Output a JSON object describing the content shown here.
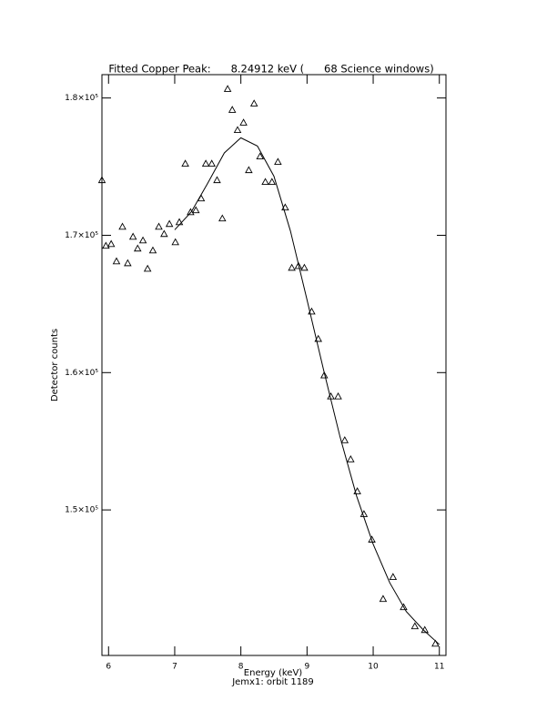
{
  "chart_data": {
    "type": "scatter",
    "title": "Fitted Copper Peak:      8.24912 keV (      68 Science windows)",
    "x_label": "Energy (keV)",
    "y_label": "Detector counts",
    "footer": "Jemx1: orbit 1189",
    "xlim": [
      5.9,
      11.1
    ],
    "ylim": [
      139400,
      181700
    ],
    "xticks": [
      6,
      7,
      8,
      9,
      10,
      11
    ],
    "yticks": [
      {
        "value": 150000,
        "label": "1.5×10⁵"
      },
      {
        "value": 160000,
        "label": "1.6×10⁵"
      },
      {
        "value": 170000,
        "label": "1.7×10⁵"
      },
      {
        "value": 180000,
        "label": "1.8×10⁵"
      }
    ],
    "color": "#000000",
    "points": {
      "x": [
        5.9,
        5.96,
        6.04,
        6.12,
        6.21,
        6.29,
        6.37,
        6.44,
        6.52,
        6.59,
        6.67,
        6.76,
        6.84,
        6.92,
        7.01,
        7.07,
        7.16,
        7.24,
        7.32,
        7.4,
        7.47,
        7.56,
        7.64,
        7.72,
        7.8,
        7.87,
        7.95,
        8.04,
        8.12,
        8.2,
        8.29,
        8.37,
        8.47,
        8.56,
        8.67,
        8.77,
        8.87,
        8.96,
        9.07,
        9.17,
        9.26,
        9.36,
        9.47,
        9.57,
        9.66,
        9.76,
        9.86,
        9.98,
        10.15,
        10.3,
        10.46,
        10.63,
        10.78,
        10.94
      ],
      "values": [
        174020,
        169240,
        169370,
        168110,
        170630,
        167970,
        169900,
        169040,
        169630,
        167570,
        168900,
        170630,
        170100,
        170830,
        169500,
        170960,
        175220,
        171690,
        171830,
        172690,
        175220,
        175220,
        174020,
        171230,
        180660,
        179140,
        177670,
        178210,
        174750,
        179600,
        175750,
        173890,
        173890,
        175350,
        172030,
        167640,
        167770,
        167640,
        164450,
        162460,
        159800,
        158270,
        158270,
        155080,
        153690,
        151360,
        149700,
        147840,
        143520,
        145120,
        142920,
        141530,
        141260,
        140260
      ]
    },
    "fit": {
      "x": [
        7.0,
        7.25,
        7.5,
        7.75,
        8.0,
        8.25,
        8.5,
        8.75,
        9.0,
        9.25,
        9.5,
        9.75,
        10.0,
        10.25,
        10.5,
        10.75,
        11.0
      ],
      "values": [
        170400,
        171700,
        173800,
        176000,
        177100,
        176500,
        174300,
        170300,
        165300,
        160200,
        155300,
        151000,
        147500,
        144700,
        142600,
        141300,
        140200
      ]
    }
  }
}
